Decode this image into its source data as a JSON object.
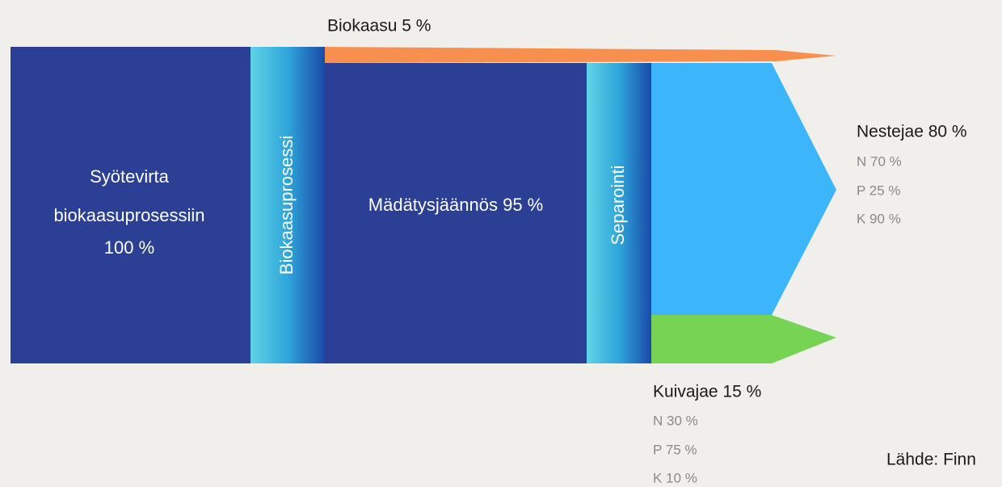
{
  "flows": {
    "biogas": {
      "label": "Biokaasu 5 %"
    },
    "feed": {
      "lines": [
        "Syötevirta",
        "biokaasuprosessiin",
        "100 %"
      ]
    },
    "process": {
      "label": "Biokaasuprosessi"
    },
    "digestate": {
      "label": "Mädätysjäännös 95 %"
    },
    "separation": {
      "label": "Separointi"
    },
    "liquid": {
      "label": "Nestejae 80 %",
      "nutrients": [
        "N 70 %",
        "P 25 %",
        "K 90 %"
      ]
    },
    "solid": {
      "label": "Kuivajae 15 %",
      "nutrients": [
        "N 30 %",
        "P 75 %",
        "K 10 %"
      ]
    }
  },
  "source": "Lähde: Finn"
}
